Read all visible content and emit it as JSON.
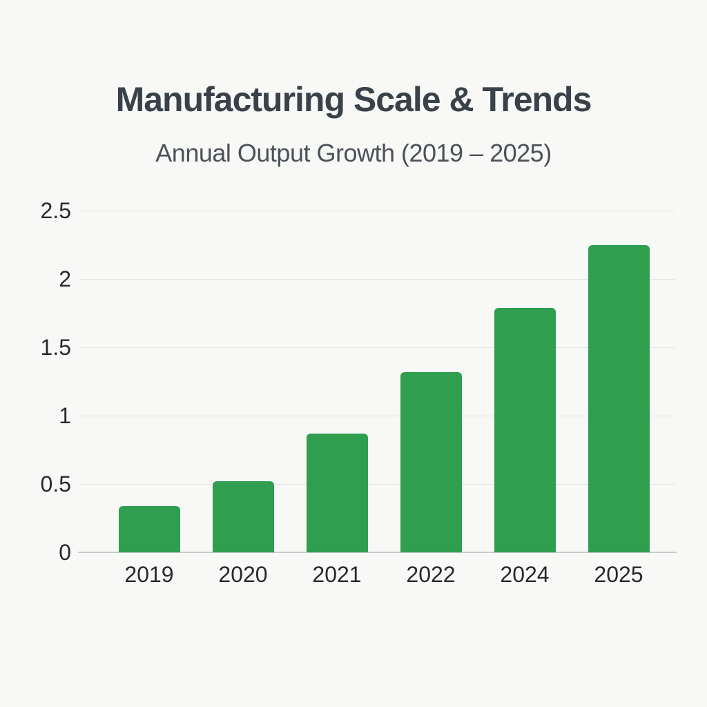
{
  "chart_data": {
    "type": "bar",
    "title": "Manufacturing Scale & Trends",
    "subtitle": "Annual Output Growth (2019 – 2025)",
    "categories": [
      "2019",
      "2020",
      "2021",
      "2022",
      "2024",
      "2025"
    ],
    "values": [
      0.34,
      0.52,
      0.87,
      1.32,
      1.79,
      2.25
    ],
    "xlabel": "",
    "ylabel": "",
    "ylim": [
      0,
      2.5
    ],
    "yticks": [
      0,
      0.5,
      1,
      1.5,
      2,
      2.5
    ],
    "grid": true,
    "legend": false
  },
  "colors": {
    "bar": "#2f9e4f",
    "background": "#f8f8f7",
    "title": "#3a4149",
    "subtitle": "#4b5258",
    "tick_label": "#26292d",
    "gridline": "#e3e4e4",
    "axis_line": "#c9cacb"
  }
}
